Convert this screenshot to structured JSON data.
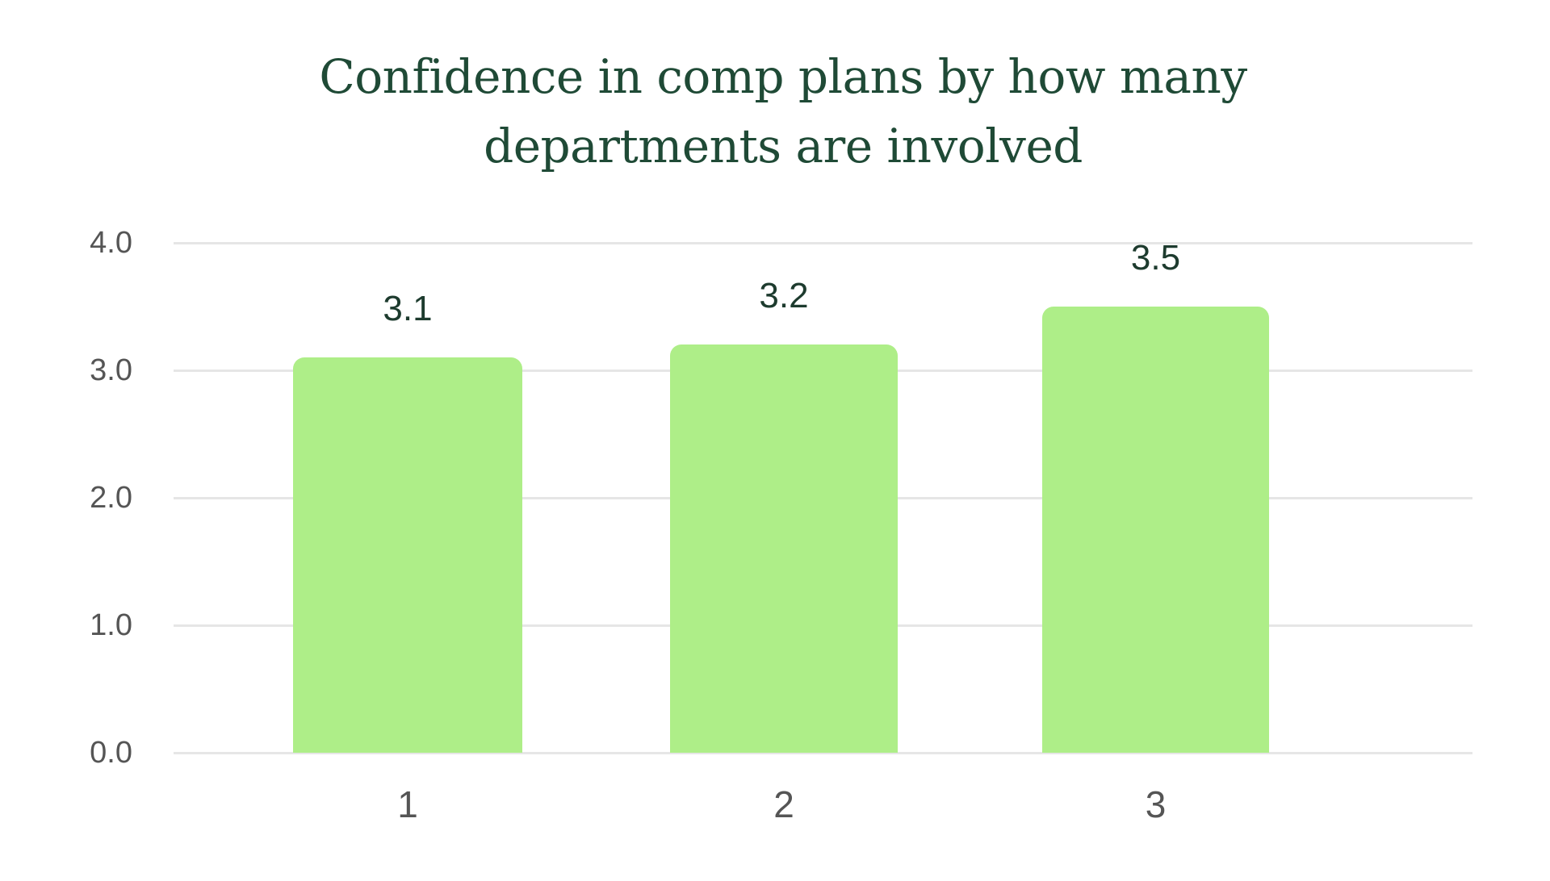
{
  "chart_data": {
    "type": "bar",
    "title": "Confidence in comp plans by how many departments are involved",
    "title_lines": [
      "Confidence in comp plans by how many",
      "departments are involved"
    ],
    "categories": [
      "1",
      "2",
      "3"
    ],
    "values": [
      3.1,
      3.2,
      3.5
    ],
    "value_labels": [
      "3.1",
      "3.2",
      "3.5"
    ],
    "xlabel": "",
    "ylabel": "",
    "ylim": [
      0,
      4
    ],
    "yticks": [
      "4.0",
      "3.0",
      "2.0",
      "1.0",
      "0.0"
    ],
    "ytick_values": [
      4,
      3,
      2,
      1,
      0
    ],
    "grid": true,
    "legend": null,
    "colors": {
      "bar": "#aeee88",
      "title": "#1f4a36",
      "value_label": "#1d3b2e",
      "tick_label": "#555555",
      "gridline": "#e6e6e6"
    }
  }
}
